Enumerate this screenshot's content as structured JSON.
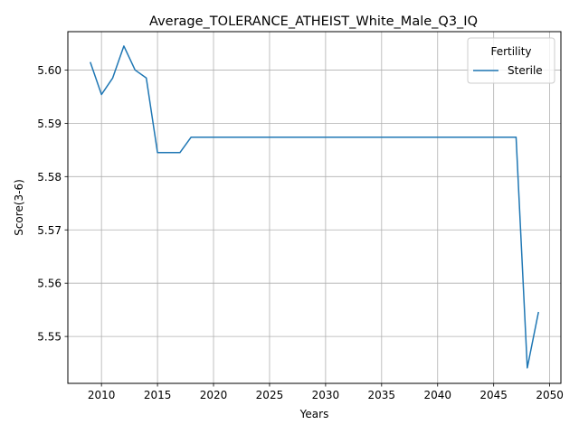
{
  "chart_data": {
    "type": "line",
    "title": "Average_TOLERANCE_ATHEIST_White_Male_Q3_IQ",
    "xlabel": "Years",
    "ylabel": "Score(3-6)",
    "xlim": [
      2007,
      2051
    ],
    "ylim": [
      5.5412,
      5.6072
    ],
    "xticks": [
      2010,
      2015,
      2020,
      2025,
      2030,
      2035,
      2040,
      2045,
      2050
    ],
    "yticks": [
      5.55,
      5.56,
      5.57,
      5.58,
      5.59,
      5.6
    ],
    "ytick_labels": [
      "5.55",
      "5.56",
      "5.57",
      "5.58",
      "5.59",
      "5.60"
    ],
    "grid": true,
    "legend": {
      "title": "Fertility",
      "position": "top-right"
    },
    "series": [
      {
        "name": "Sterile",
        "color": "#1f77b4",
        "x": [
          2009,
          2010,
          2011,
          2012,
          2013,
          2014,
          2015,
          2016,
          2017,
          2018,
          2019,
          2020,
          2021,
          2022,
          2023,
          2024,
          2025,
          2026,
          2027,
          2028,
          2029,
          2030,
          2031,
          2032,
          2033,
          2034,
          2035,
          2036,
          2037,
          2038,
          2039,
          2040,
          2041,
          2042,
          2043,
          2044,
          2045,
          2046,
          2047,
          2048,
          2049
        ],
        "y": [
          5.6015,
          5.5954,
          5.5985,
          5.6045,
          5.6,
          5.5985,
          5.5845,
          5.5845,
          5.5845,
          5.5874,
          5.5874,
          5.5874,
          5.5874,
          5.5874,
          5.5874,
          5.5874,
          5.5874,
          5.5874,
          5.5874,
          5.5874,
          5.5874,
          5.5874,
          5.5874,
          5.5874,
          5.5874,
          5.5874,
          5.5874,
          5.5874,
          5.5874,
          5.5874,
          5.5874,
          5.5874,
          5.5874,
          5.5874,
          5.5874,
          5.5874,
          5.5874,
          5.5874,
          5.5874,
          5.5441,
          5.5546
        ]
      }
    ]
  }
}
